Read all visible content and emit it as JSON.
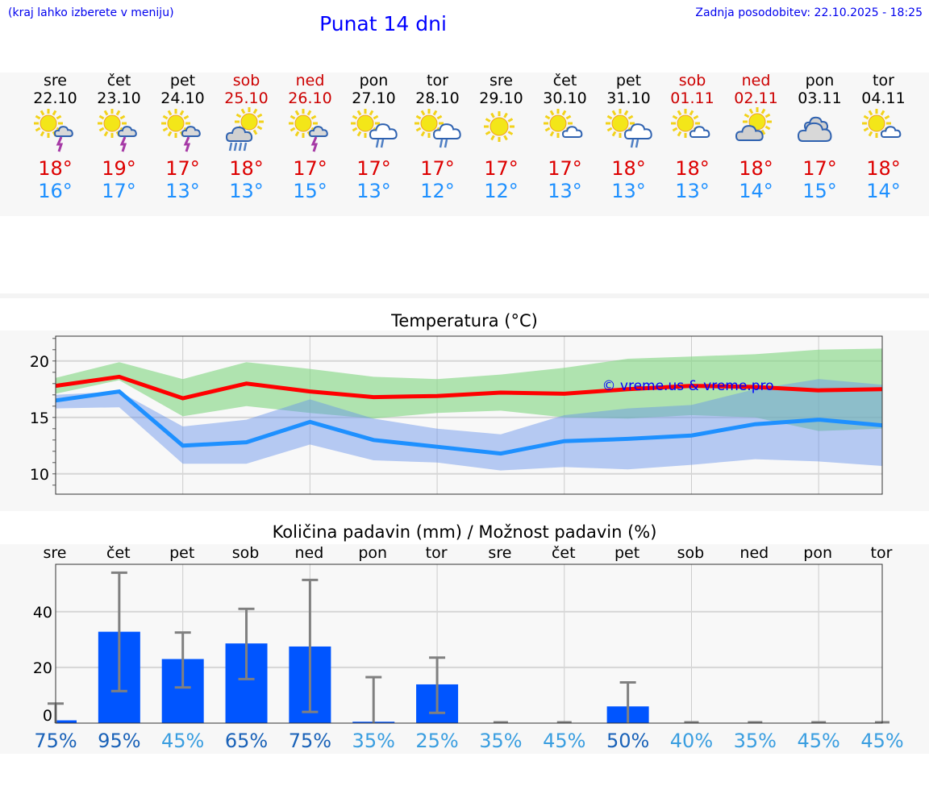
{
  "header": {
    "hint": "(kraj lahko izberete v meniju)",
    "title": "Punat 14 dni",
    "updated": "Zadnja posodobitev: 22.10.2025 - 18:25"
  },
  "days": [
    {
      "name": "sre",
      "date": "22.10",
      "max": "18°",
      "min": "16°",
      "icon": "sun-cloud-thunder-icon",
      "weekend": false
    },
    {
      "name": "čet",
      "date": "23.10",
      "max": "19°",
      "min": "17°",
      "icon": "sun-cloud-thunder-icon",
      "weekend": false
    },
    {
      "name": "pet",
      "date": "24.10",
      "max": "17°",
      "min": "13°",
      "icon": "sun-cloud-thunder-icon",
      "weekend": false
    },
    {
      "name": "sob",
      "date": "25.10",
      "max": "18°",
      "min": "13°",
      "icon": "sun-cloud-heavy-rain-icon",
      "weekend": true
    },
    {
      "name": "ned",
      "date": "26.10",
      "max": "17°",
      "min": "15°",
      "icon": "sun-cloud-thunder-icon",
      "weekend": true
    },
    {
      "name": "pon",
      "date": "27.10",
      "max": "17°",
      "min": "13°",
      "icon": "sun-cloud-rain-icon",
      "weekend": false
    },
    {
      "name": "tor",
      "date": "28.10",
      "max": "17°",
      "min": "12°",
      "icon": "sun-cloud-rain-icon",
      "weekend": false
    },
    {
      "name": "sre",
      "date": "29.10",
      "max": "17°",
      "min": "12°",
      "icon": "sun-icon",
      "weekend": false
    },
    {
      "name": "čet",
      "date": "30.10",
      "max": "17°",
      "min": "13°",
      "icon": "sun-small-cloud-icon",
      "weekend": false
    },
    {
      "name": "pet",
      "date": "31.10",
      "max": "18°",
      "min": "13°",
      "icon": "sun-cloud-rain-icon",
      "weekend": false
    },
    {
      "name": "sob",
      "date": "01.11",
      "max": "18°",
      "min": "13°",
      "icon": "sun-small-cloud-icon",
      "weekend": true
    },
    {
      "name": "ned",
      "date": "02.11",
      "max": "18°",
      "min": "14°",
      "icon": "sun-grey-cloud-icon",
      "weekend": true
    },
    {
      "name": "pon",
      "date": "03.11",
      "max": "17°",
      "min": "15°",
      "icon": "overcast-icon",
      "weekend": false
    },
    {
      "name": "tor",
      "date": "04.11",
      "max": "18°",
      "min": "14°",
      "icon": "sun-small-cloud-icon",
      "weekend": false
    }
  ],
  "colors": {
    "weekend": "#cc0000",
    "max": "#dd0000",
    "min": "#1e90ff",
    "bar": "#0055ff",
    "pct_high": "#1a62b8",
    "pct_low": "#3a9ee0"
  },
  "chart_data": [
    {
      "type": "line",
      "title": "Temperatura (°C)",
      "ylim": [
        8.2,
        22.2
      ],
      "yticks": [
        10,
        15,
        20
      ],
      "watermark": "© vreme.us & vreme.pro",
      "grid": true,
      "series": [
        {
          "name": "max",
          "color": "#ff0000",
          "values": [
            17.8,
            18.6,
            16.7,
            18.0,
            17.3,
            16.8,
            16.9,
            17.2,
            17.1,
            17.5,
            17.8,
            17.7,
            17.4,
            17.5
          ]
        },
        {
          "name": "min",
          "color": "#1e90ff",
          "values": [
            16.5,
            17.3,
            12.5,
            12.8,
            14.6,
            13.0,
            12.4,
            11.8,
            12.9,
            13.1,
            13.4,
            14.4,
            14.8,
            14.3
          ]
        }
      ],
      "bands": [
        {
          "name": "max-range",
          "color": "rgba(130,215,130,0.62)",
          "upper": [
            18.5,
            19.9,
            18.4,
            19.9,
            19.3,
            18.6,
            18.4,
            18.8,
            19.4,
            20.2,
            20.4,
            20.6,
            21.0,
            21.1
          ],
          "lower": [
            17.1,
            18.3,
            15.1,
            16.0,
            15.4,
            14.9,
            15.4,
            15.6,
            15.0,
            14.9,
            15.2,
            15.0,
            13.8,
            14.0
          ]
        },
        {
          "name": "min-range",
          "color": "rgba(100,145,235,0.45)",
          "upper": [
            17.0,
            17.3,
            14.2,
            14.8,
            16.6,
            14.9,
            14.0,
            13.5,
            15.2,
            15.8,
            16.1,
            17.5,
            18.4,
            17.9
          ],
          "lower": [
            15.8,
            15.9,
            10.9,
            10.9,
            12.6,
            11.2,
            11.0,
            10.3,
            10.6,
            10.4,
            10.8,
            11.3,
            11.1,
            10.7
          ]
        }
      ]
    },
    {
      "type": "bar",
      "title": "Količina padavin (mm) / Možnost padavin (%)",
      "categories": [
        "sre",
        "čet",
        "pet",
        "sob",
        "ned",
        "pon",
        "tor",
        "sre",
        "čet",
        "pet",
        "sob",
        "ned",
        "pon",
        "tor"
      ],
      "values": [
        1.0,
        32.8,
        23.0,
        28.6,
        27.5,
        0.5,
        13.9,
        0,
        0,
        6.0,
        0,
        0,
        0,
        0
      ],
      "err_low": [
        0,
        11.5,
        12.8,
        15.8,
        4.0,
        0,
        3.7,
        0,
        0,
        0,
        0,
        0,
        0,
        0
      ],
      "err_high": [
        7.0,
        54.0,
        32.5,
        41.0,
        51.4,
        16.5,
        23.5,
        0,
        0,
        14.6,
        0,
        0,
        0,
        0
      ],
      "probability": [
        "75%",
        "95%",
        "45%",
        "65%",
        "75%",
        "35%",
        "25%",
        "35%",
        "45%",
        "50%",
        "40%",
        "35%",
        "45%",
        "45%"
      ],
      "probability_values": [
        75,
        95,
        45,
        65,
        75,
        35,
        25,
        35,
        45,
        50,
        40,
        35,
        45,
        45
      ],
      "ylim": [
        0,
        57
      ],
      "yticks": [
        0,
        20,
        40
      ],
      "grid": true
    }
  ]
}
